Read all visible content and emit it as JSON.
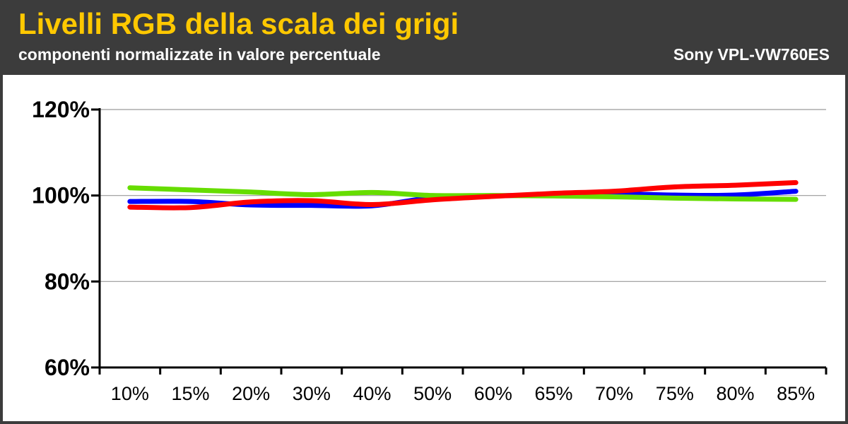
{
  "header": {
    "title": "Livelli RGB della scala dei grigi",
    "subtitle": "componenti normalizzate in valore percentuale",
    "model": "Sony VPL-VW760ES"
  },
  "colors": {
    "title": "#ffc800",
    "background": "#3c3c3c",
    "blue": "#0000ff",
    "green": "#66dd00",
    "red": "#ff0000"
  },
  "chart_data": {
    "type": "line",
    "title": "Livelli RGB della scala dei grigi",
    "subtitle": "componenti normalizzate in valore percentuale",
    "categories": [
      "10%",
      "15%",
      "20%",
      "30%",
      "40%",
      "50%",
      "60%",
      "65%",
      "70%",
      "75%",
      "80%",
      "85%"
    ],
    "yticks": [
      "60%",
      "80%",
      "100%",
      "120%"
    ],
    "ylim": [
      60,
      120
    ],
    "grid": true,
    "series": [
      {
        "key": "blue",
        "color": "#0000ff",
        "values": [
          98.6,
          98.6,
          97.8,
          97.7,
          97.6,
          99.5,
          99.9,
          100.2,
          100.4,
          100.1,
          100.1,
          101.0
        ]
      },
      {
        "key": "green",
        "color": "#66dd00",
        "values": [
          101.8,
          101.3,
          100.8,
          100.2,
          100.7,
          100.0,
          100.0,
          99.9,
          99.7,
          99.4,
          99.2,
          99.1
        ]
      },
      {
        "key": "red",
        "color": "#ff0000",
        "values": [
          97.3,
          97.2,
          98.5,
          98.8,
          97.9,
          99.0,
          99.8,
          100.5,
          101.0,
          102.0,
          102.4,
          103.0
        ]
      }
    ]
  }
}
